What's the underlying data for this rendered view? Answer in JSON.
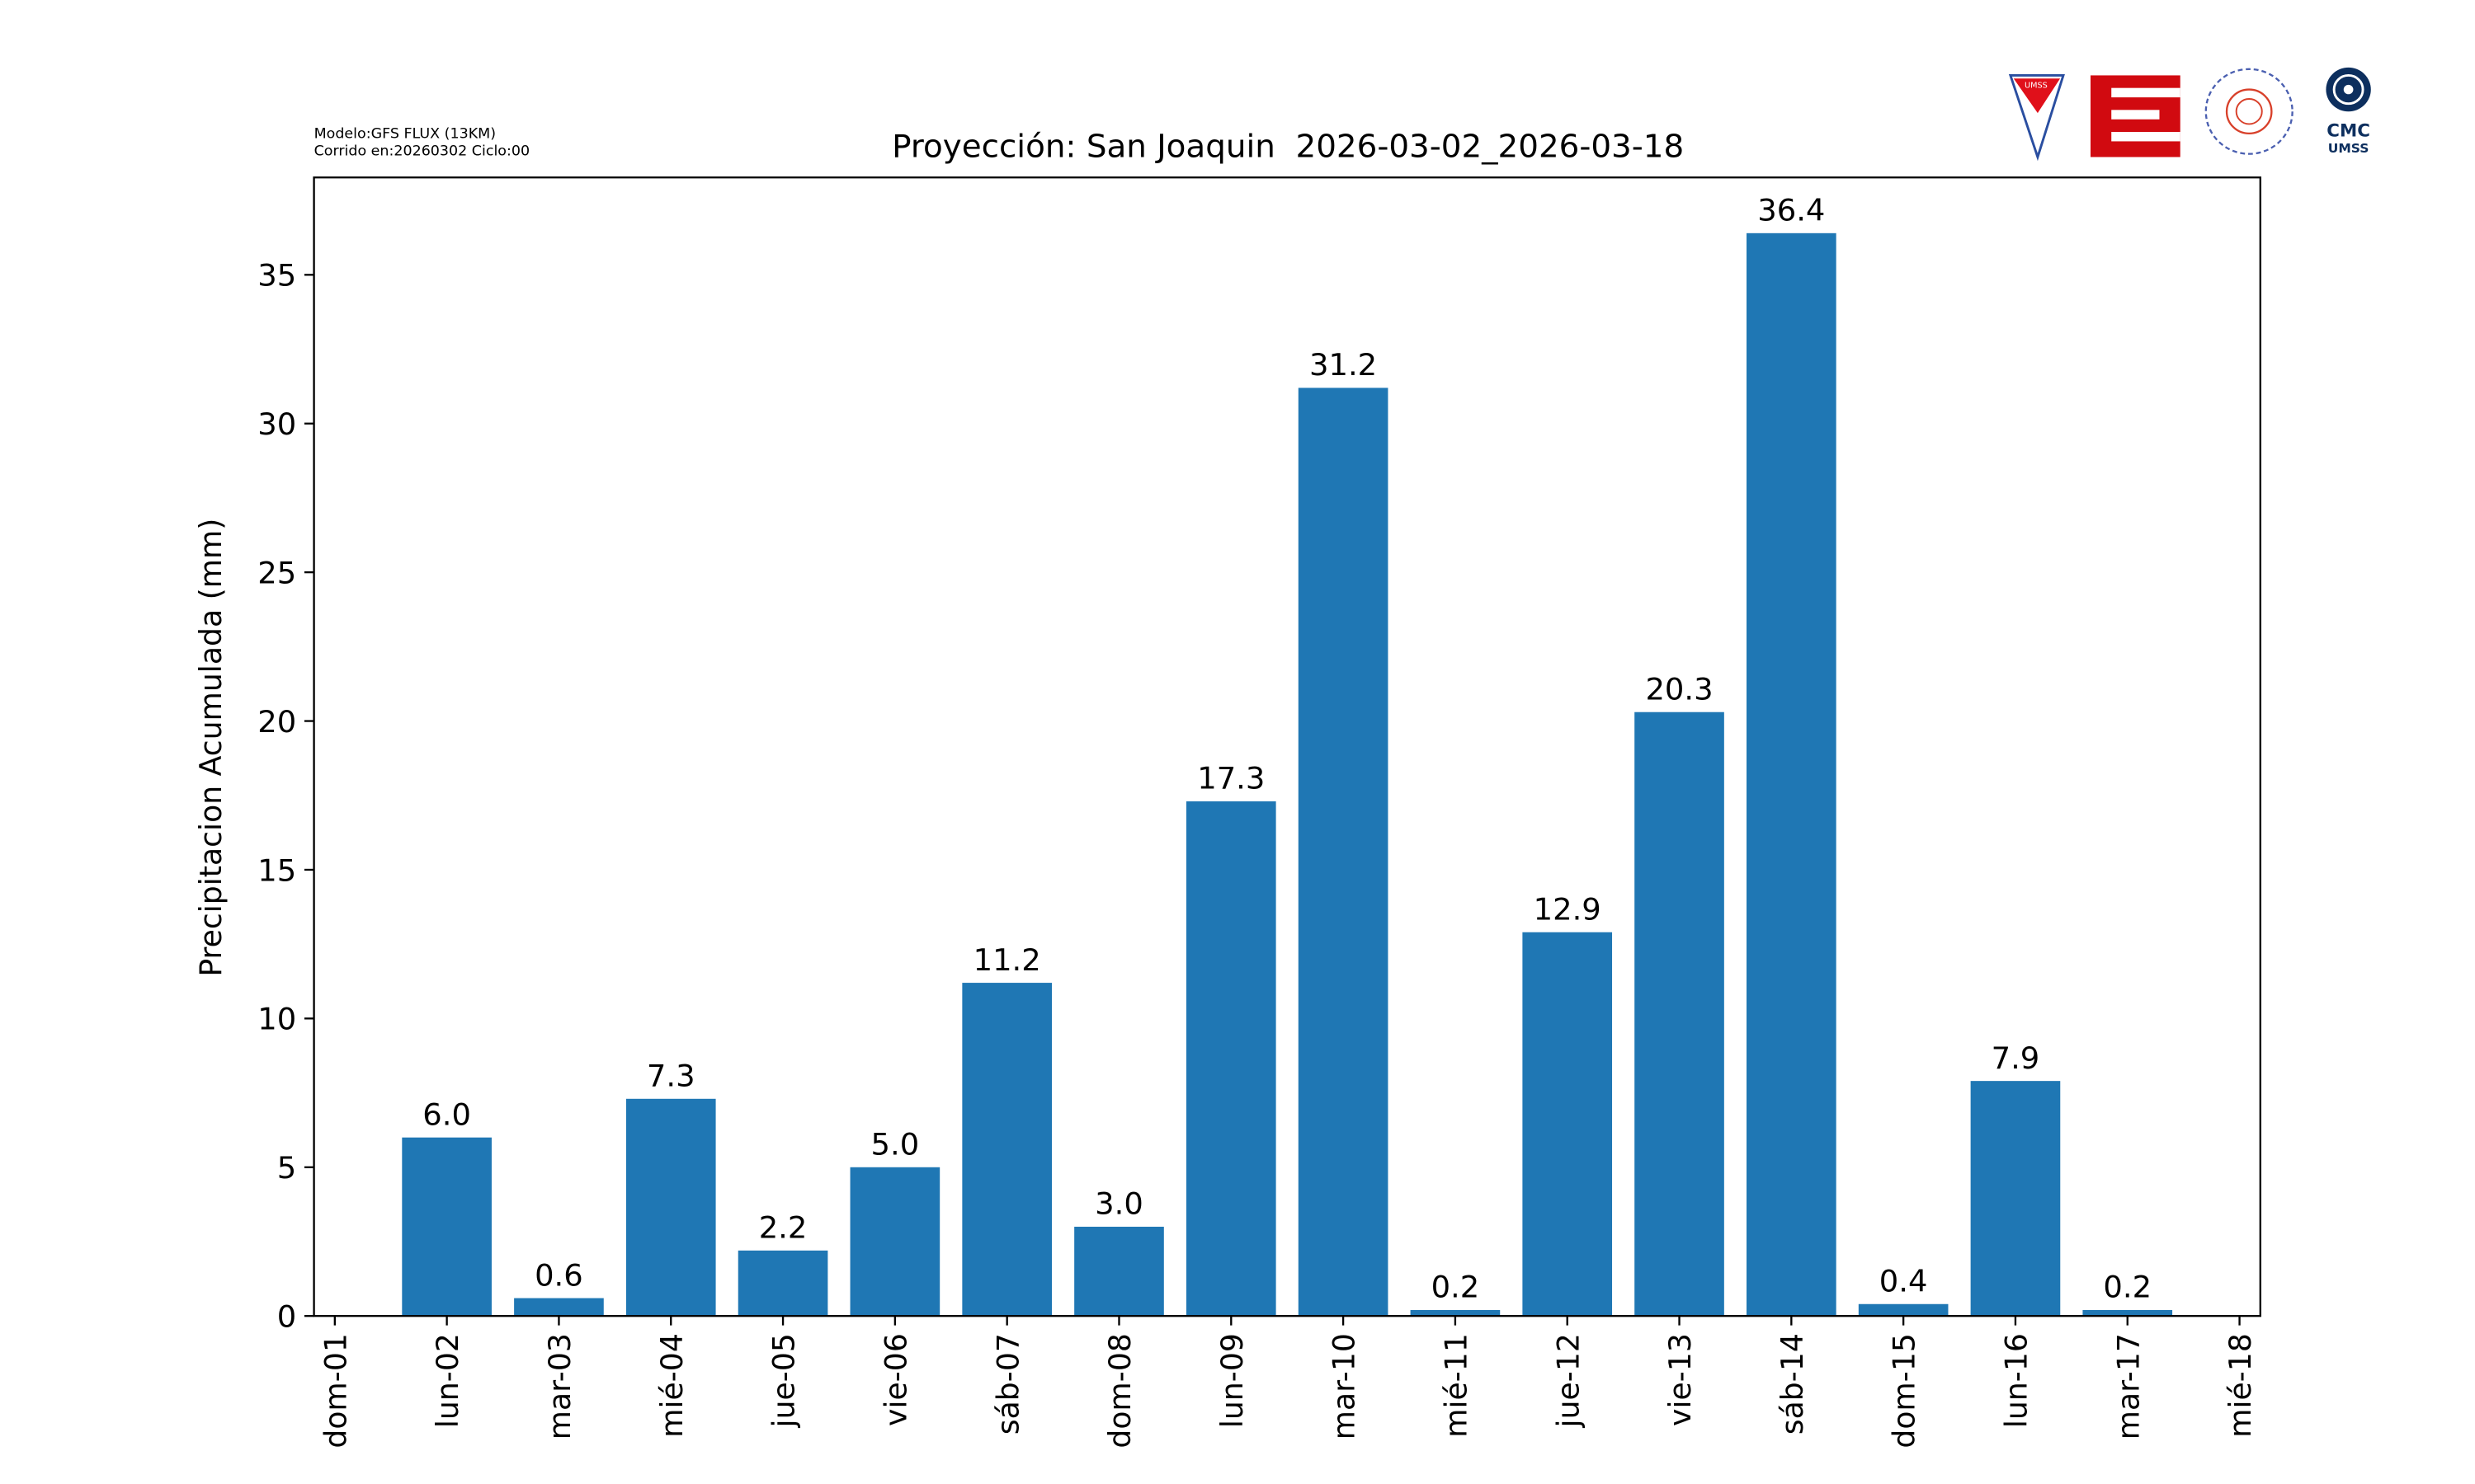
{
  "model_info": {
    "line1": "Modelo:GFS FLUX (13KM)",
    "line2": "Corrido en:20260302 Ciclo:00"
  },
  "logos": {
    "umss": "UMSS",
    "cmc": "CMC",
    "cmc_sub": "UMSS"
  },
  "colors": {
    "bar": "#1f77b4"
  },
  "chart_data": {
    "type": "bar",
    "title": "Proyección: San Joaquin  2026-03-02_2026-03-18",
    "xlabel": "",
    "ylabel": "Precipitacion Acumulada (mm)",
    "ylim": [
      0,
      38
    ],
    "yticks": [
      0,
      5,
      10,
      15,
      20,
      25,
      30,
      35
    ],
    "xtick_labels": [
      "dom-01",
      "lun-02",
      "mar-03",
      "mié-04",
      "jue-05",
      "vie-06",
      "sáb-07",
      "dom-08",
      "lun-09",
      "mar-10",
      "mié-11",
      "jue-12",
      "vie-13",
      "sáb-14",
      "dom-15",
      "lun-16",
      "mar-17",
      "mié-18"
    ],
    "categories": [
      "lun-02",
      "mar-03",
      "mié-04",
      "jue-05",
      "vie-06",
      "sáb-07",
      "dom-08",
      "lun-09",
      "mar-10",
      "mié-11",
      "jue-12",
      "vie-13",
      "sáb-14",
      "dom-15",
      "lun-16",
      "mar-17"
    ],
    "values": [
      6.0,
      0.6,
      7.3,
      2.2,
      5.0,
      11.2,
      3.0,
      17.3,
      31.2,
      0.2,
      12.9,
      20.3,
      36.4,
      0.4,
      7.9,
      0.2
    ],
    "data_labels": [
      "6.0",
      "0.6",
      "7.3",
      "2.2",
      "5.0",
      "11.2",
      "3.0",
      "17.3",
      "31.2",
      "0.2",
      "12.9",
      "20.3",
      "36.4",
      "0.4",
      "7.9",
      "0.2"
    ],
    "grid": false,
    "legend": "none"
  }
}
